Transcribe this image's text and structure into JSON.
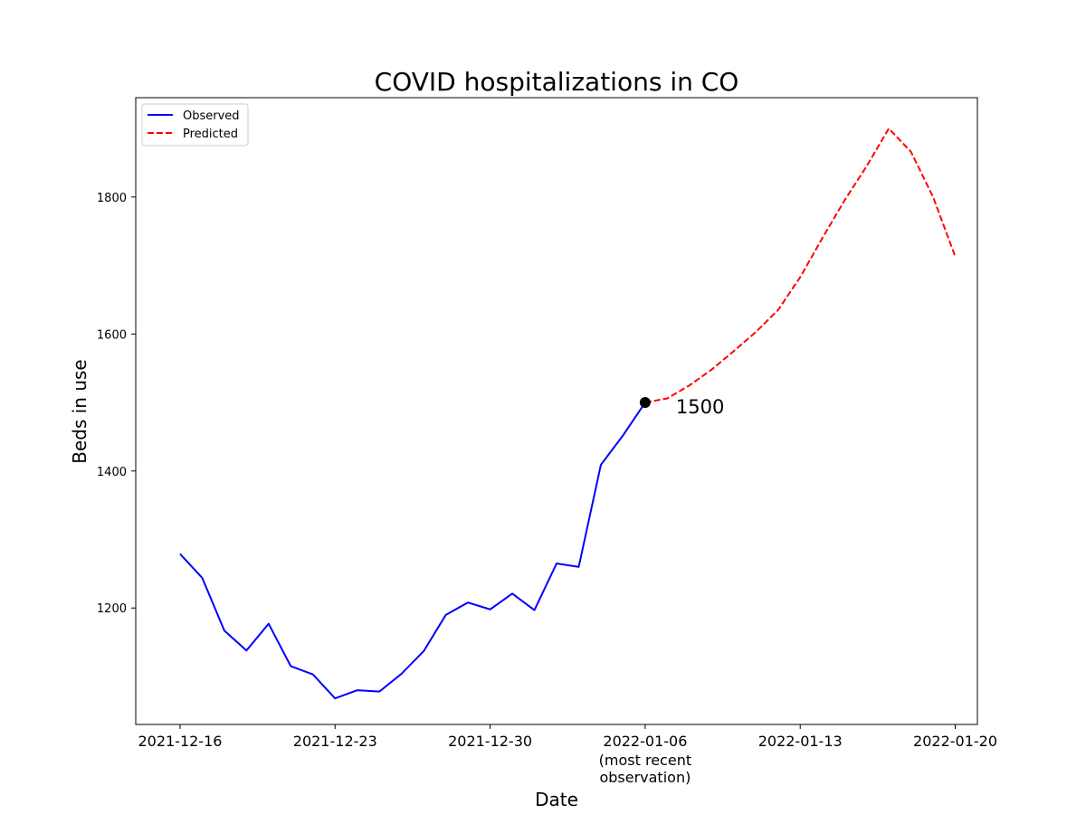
{
  "chart_data": {
    "type": "line",
    "title": "COVID hospitalizations in CO",
    "xlabel": "Date",
    "ylabel": "Beds in use",
    "xlim": [
      "2021-12-14",
      "2022-01-21"
    ],
    "ylim": [
      1030,
      1945
    ],
    "x_ticks": [
      {
        "date": "2021-12-16",
        "label": "2021-12-16"
      },
      {
        "date": "2021-12-23",
        "label": "2021-12-23"
      },
      {
        "date": "2021-12-30",
        "label": "2021-12-30"
      },
      {
        "date": "2022-01-06",
        "label": "2022-01-06",
        "sublabel": [
          "(most recent",
          "observation)"
        ]
      },
      {
        "date": "2022-01-13",
        "label": "2022-01-13"
      },
      {
        "date": "2022-01-20",
        "label": "2022-01-20"
      }
    ],
    "y_ticks": [
      1200,
      1400,
      1600,
      1800
    ],
    "grid": false,
    "legend_position": "top-left",
    "series": [
      {
        "name": "Observed",
        "color": "#0000ff",
        "style": "solid",
        "x": [
          "2021-12-16",
          "2021-12-17",
          "2021-12-18",
          "2021-12-19",
          "2021-12-20",
          "2021-12-21",
          "2021-12-22",
          "2021-12-23",
          "2021-12-24",
          "2021-12-25",
          "2021-12-26",
          "2021-12-27",
          "2021-12-28",
          "2021-12-29",
          "2021-12-30",
          "2021-12-31",
          "2022-01-01",
          "2022-01-02",
          "2022-01-03",
          "2022-01-04",
          "2022-01-05",
          "2022-01-06"
        ],
        "values": [
          1279,
          1244,
          1167,
          1138,
          1177,
          1115,
          1103,
          1068,
          1080,
          1078,
          1104,
          1137,
          1190,
          1208,
          1198,
          1221,
          1197,
          1265,
          1260,
          1409,
          1452,
          1500
        ]
      },
      {
        "name": "Predicted",
        "color": "#ff0000",
        "style": "dashed",
        "x": [
          "2022-01-06",
          "2022-01-07",
          "2022-01-08",
          "2022-01-09",
          "2022-01-10",
          "2022-01-11",
          "2022-01-12",
          "2022-01-13",
          "2022-01-14",
          "2022-01-15",
          "2022-01-16",
          "2022-01-17",
          "2022-01-18",
          "2022-01-19",
          "2022-01-20"
        ],
        "values": [
          1500,
          1506,
          1525,
          1548,
          1575,
          1603,
          1635,
          1683,
          1740,
          1795,
          1845,
          1900,
          1866,
          1800,
          1713
        ]
      }
    ],
    "annotation": {
      "date": "2022-01-06",
      "value": 1500,
      "text": "1500",
      "marker_color": "#000000"
    }
  }
}
